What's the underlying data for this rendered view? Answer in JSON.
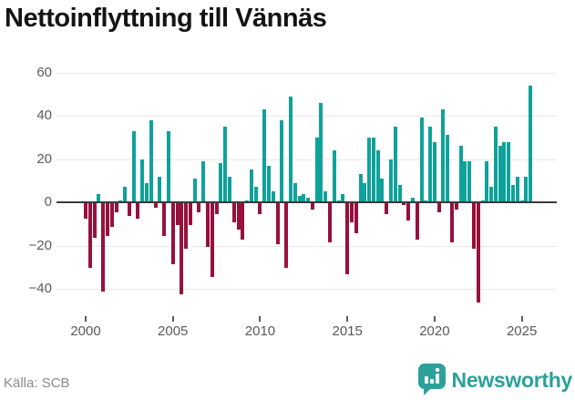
{
  "title": "Nettoinflyttning till Vännäs",
  "source": "Källa: SCB",
  "logo": {
    "name": "Newsworthy",
    "icon": "bar-chart-pin-icon"
  },
  "colors": {
    "positive": "#0fa29a",
    "negative": "#98103c",
    "grid": "#e9e9e9",
    "zero_line": "#3a3a3a",
    "axis_text": "#595959",
    "title_text": "#141414",
    "source_text": "#8a8a8a",
    "logo_teal": "#2ba19a"
  },
  "chart_data": {
    "type": "bar",
    "title": "Nettoinflyttning till Vännäs",
    "xlabel": "",
    "ylabel": "",
    "frequency": "quarterly",
    "start_period": "2000-Q1",
    "end_period": "2025-Q3",
    "grid": "horizontal",
    "legend": "none",
    "ylim": [
      -51,
      64
    ],
    "y_ticks": [
      {
        "label": "60",
        "value": 60
      },
      {
        "label": "40",
        "value": 40
      },
      {
        "label": "20",
        "value": 20
      },
      {
        "label": "0",
        "value": 0
      },
      {
        "label": "−20",
        "value": -20
      },
      {
        "label": "−40",
        "value": -40
      }
    ],
    "x_ticks": [
      {
        "label": "2000",
        "index": 0
      },
      {
        "label": "2005",
        "index": 20
      },
      {
        "label": "2010",
        "index": 40
      },
      {
        "label": "2015",
        "index": 60
      },
      {
        "label": "2020",
        "index": 80
      },
      {
        "label": "2025",
        "index": 100
      }
    ],
    "values": [
      -7,
      -30,
      -16,
      4,
      -41,
      -15,
      -11,
      -4,
      1,
      7,
      -6,
      33,
      -7,
      20,
      9,
      38,
      -2,
      12,
      -15,
      33,
      -28,
      -10,
      -42,
      -21,
      -10,
      11,
      -4,
      19,
      -20,
      -34,
      -5,
      18,
      35,
      12,
      -9,
      -12,
      -17,
      1,
      15,
      7,
      -5,
      43,
      17,
      5,
      -19,
      38,
      -30,
      49,
      9,
      3,
      4,
      2,
      -3,
      30,
      46,
      5,
      -18,
      24,
      1,
      4,
      -33,
      -9,
      -14,
      13,
      9,
      30,
      30,
      24,
      11,
      -5,
      20,
      35,
      8,
      -1,
      -8,
      2,
      -17,
      39,
      1,
      35,
      28,
      -4,
      43,
      31,
      -18,
      -3,
      26,
      19,
      19,
      -21,
      -46,
      1,
      19,
      7,
      35,
      26,
      28,
      28,
      8,
      12,
      1,
      12,
      54
    ]
  }
}
